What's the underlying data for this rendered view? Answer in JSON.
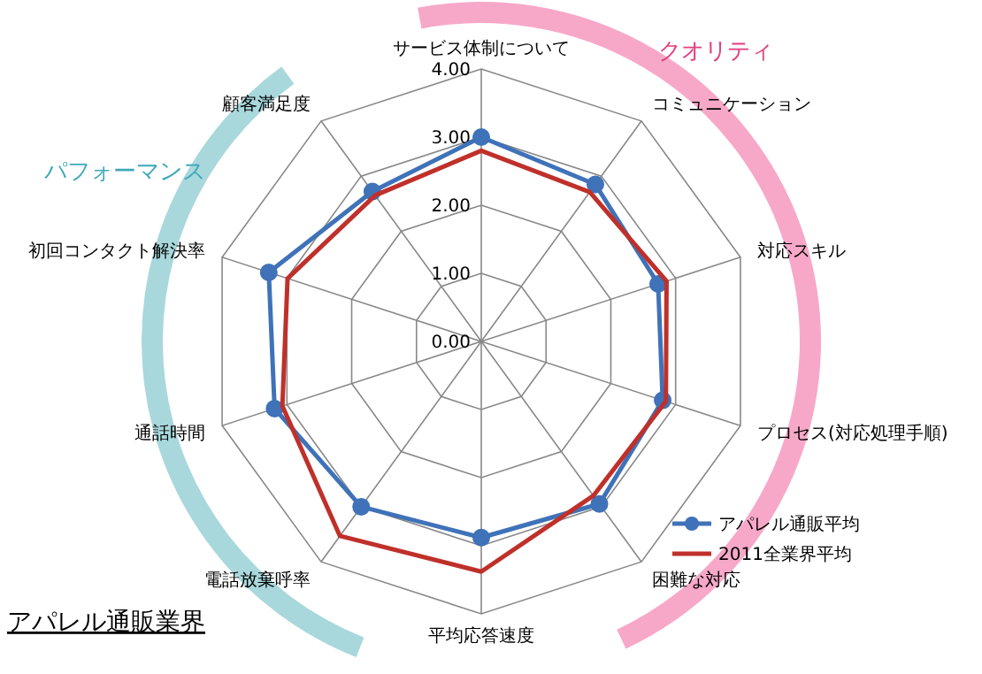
{
  "chart_data": {
    "type": "radar",
    "title": "アパレル通販業界",
    "categories": [
      "サービス体制について",
      "コミュニケーション",
      "対応スキル",
      "プロセス(対応処理手順)",
      "困難な対応",
      "平均応答速度",
      "電話放棄呼率",
      "通話時間",
      "初回コンタクト解決率",
      "顧客満足度"
    ],
    "series": [
      {
        "name": "アパレル通販平均",
        "color": "#3f72b8",
        "marker": "circle",
        "values": [
          3.0,
          2.85,
          2.73,
          2.8,
          2.95,
          2.88,
          3.0,
          3.19,
          3.28,
          2.72
        ]
      },
      {
        "name": "2011全業界平均",
        "color": "#c0302a",
        "marker": "none",
        "values": [
          2.8,
          2.71,
          2.86,
          2.85,
          2.8,
          3.38,
          3.53,
          3.07,
          2.99,
          2.65
        ]
      }
    ],
    "ylim": [
      0,
      4
    ],
    "yticks": [
      {
        "value": 0,
        "label": "0.00"
      },
      {
        "value": 1,
        "label": "1.00"
      },
      {
        "value": 2,
        "label": "2.00"
      },
      {
        "value": 3,
        "label": "3.00"
      },
      {
        "value": 4,
        "label": "4.00"
      }
    ],
    "grid": true,
    "legend": "bottom right",
    "annotations": [
      "パフォーマンス",
      "クオリティ"
    ]
  }
}
